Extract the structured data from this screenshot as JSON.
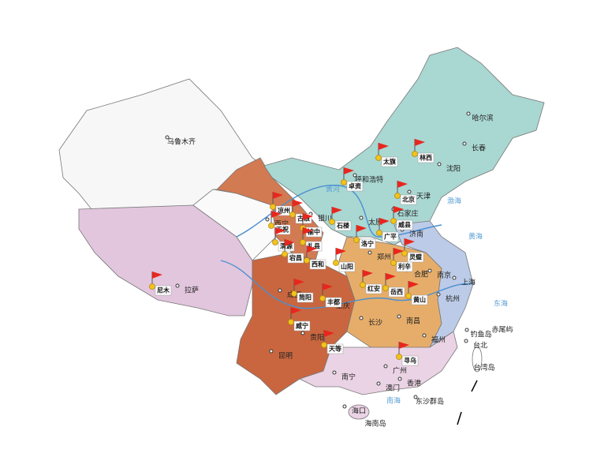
{
  "cities": [
    "乌鲁木齐",
    "哈尔滨",
    "长春",
    "沈阳",
    "呼和浩特",
    "天津",
    "石家庄",
    "太原",
    "济南",
    "银川",
    "西宁",
    "郑州",
    "合肥",
    "南京",
    "上海",
    "杭州",
    "成都",
    "重庆",
    "长沙",
    "南昌",
    "贵阳",
    "昆明",
    "南宁",
    "广州",
    "福州",
    "台北",
    "拉萨",
    "香港",
    "澳门",
    "海口",
    "海南岛",
    "台湾岛",
    "钓鱼岛",
    "赤尾屿",
    "东沙群岛"
  ],
  "seas": [
    "渤海",
    "黄海",
    "东海",
    "南海",
    "黄河"
  ],
  "sites": [
    "林西",
    "太旗",
    "卓资",
    "北京",
    "凉州",
    "古浪",
    "天祝",
    "榆中",
    "渭源",
    "礼县",
    "宕昌",
    "西和",
    "石楼",
    "广平",
    "威县",
    "洛宁",
    "山阳",
    "灵璧",
    "利辛",
    "尼木",
    "简阳",
    "丰都",
    "红安",
    "岳西",
    "黄山",
    "威宁",
    "天等",
    "寻乌"
  ]
}
